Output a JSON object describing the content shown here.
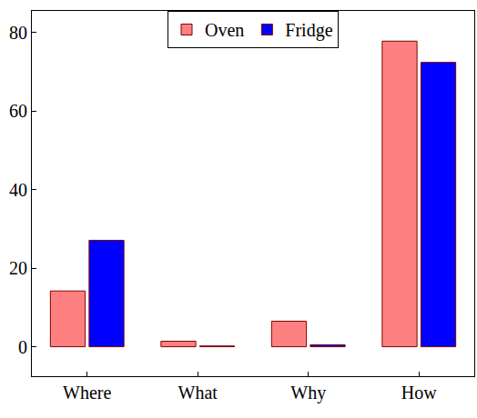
{
  "chart_data": {
    "type": "bar",
    "categories": [
      "Where",
      "What",
      "Why",
      "How"
    ],
    "series": [
      {
        "name": "Oven",
        "color": "#ff8080",
        "values": [
          14.2,
          1.4,
          6.5,
          77.8
        ]
      },
      {
        "name": "Fridge",
        "color": "#0000ff",
        "values": [
          27.1,
          0.2,
          0.5,
          72.4
        ]
      }
    ],
    "ylim": [
      -7.5,
      85.5
    ],
    "yticks": [
      0,
      20,
      40,
      60,
      80
    ],
    "grid": false,
    "legend": "top"
  }
}
